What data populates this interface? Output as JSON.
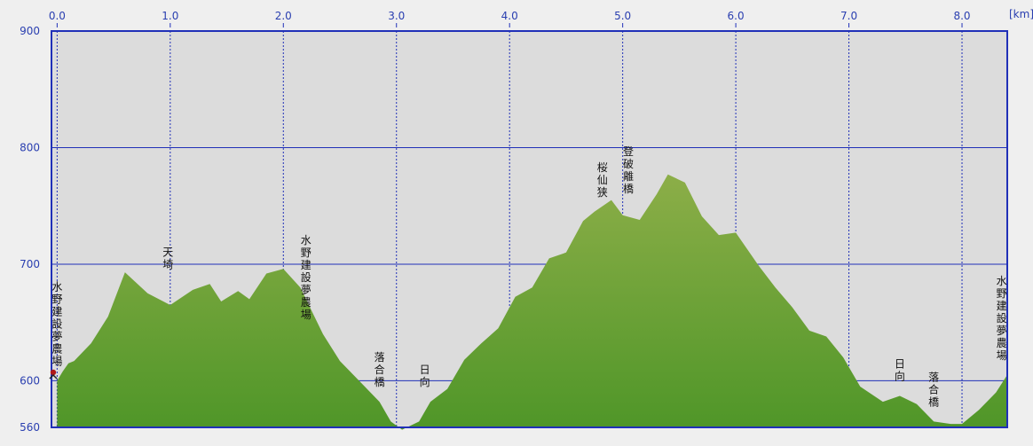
{
  "chart_data": {
    "type": "area",
    "title": "",
    "xlabel": "",
    "ylabel": "",
    "x_unit": "[km]",
    "xlim": [
      -0.05,
      8.4
    ],
    "ylim": [
      560,
      900
    ],
    "x_ticks": [
      "0.0",
      "1.0",
      "2.0",
      "3.0",
      "4.0",
      "5.0",
      "6.0",
      "7.0",
      "8.0"
    ],
    "y_ticks": [
      "900",
      "800",
      "700",
      "600",
      "560"
    ],
    "grid": true,
    "colors": {
      "fill_top": "#8cae48",
      "fill_bottom": "#4f9628",
      "plot_bg": "#dcdcdc",
      "grid": "#2030b8",
      "tick_text": "#2a3fb0",
      "marker": "#b01818"
    },
    "x": [
      0.0,
      0.05,
      0.1,
      0.15,
      0.3,
      0.45,
      0.6,
      0.8,
      1.0,
      1.2,
      1.35,
      1.45,
      1.6,
      1.7,
      1.85,
      2.0,
      2.15,
      2.35,
      2.5,
      2.7,
      2.85,
      2.95,
      3.05,
      3.2,
      3.3,
      3.45,
      3.6,
      3.75,
      3.9,
      4.05,
      4.2,
      4.35,
      4.5,
      4.65,
      4.75,
      4.9,
      5.0,
      5.15,
      5.3,
      5.4,
      5.55,
      5.7,
      5.85,
      6.0,
      6.1,
      6.2,
      6.35,
      6.5,
      6.65,
      6.8,
      6.95,
      7.1,
      7.3,
      7.45,
      7.6,
      7.75,
      7.9,
      8.0,
      8.15,
      8.3,
      8.4
    ],
    "y": [
      600,
      608,
      615,
      617,
      632,
      655,
      693,
      675,
      665,
      678,
      683,
      668,
      677,
      670,
      692,
      696,
      680,
      640,
      617,
      597,
      582,
      565,
      558,
      565,
      582,
      593,
      618,
      632,
      645,
      672,
      680,
      705,
      710,
      737,
      745,
      755,
      742,
      738,
      760,
      777,
      770,
      741,
      725,
      727,
      713,
      699,
      680,
      663,
      643,
      638,
      620,
      595,
      582,
      587,
      580,
      565,
      563,
      563,
      575,
      590,
      605
    ],
    "landmarks": [
      {
        "label": "水野建設 夢農場",
        "x": 0.0,
        "y": 600
      },
      {
        "label": "天埼",
        "x": 0.98,
        "y": 683
      },
      {
        "label": "水野建設 夢農場",
        "x": 2.2,
        "y": 640
      },
      {
        "label": "落合橋",
        "x": 2.85,
        "y": 582
      },
      {
        "label": "日向",
        "x": 3.25,
        "y": 582
      },
      {
        "label": "桜仙狭",
        "x": 4.82,
        "y": 745
      },
      {
        "label": "登破離橋",
        "x": 5.05,
        "y": 748
      },
      {
        "label": "日向",
        "x": 7.45,
        "y": 587
      },
      {
        "label": "落合橋",
        "x": 7.75,
        "y": 565
      },
      {
        "label": "水野建設 夢農場",
        "x": 8.35,
        "y": 605
      }
    ]
  }
}
